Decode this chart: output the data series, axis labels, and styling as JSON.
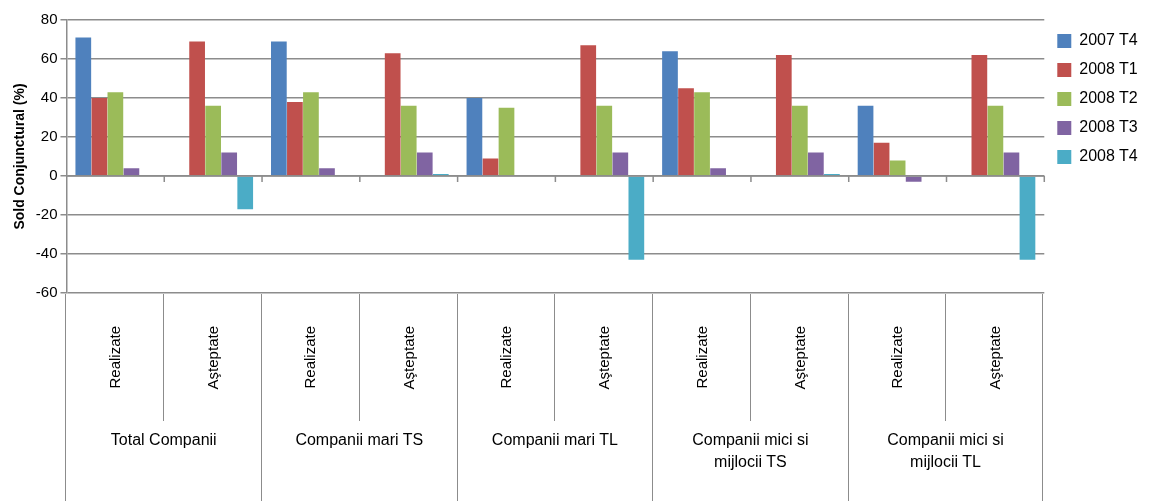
{
  "chart_data": {
    "type": "bar",
    "ylabel": "Sold Conjunctural (%)",
    "categories": [
      "Realizate",
      "Aşteptate",
      "Realizate",
      "Aşteptate",
      "Realizate",
      "Aşteptate",
      "Realizate",
      "Aşteptate",
      "Realizate",
      "Aşteptate"
    ],
    "annotations": [
      "Total Companii",
      "Companii mari TS",
      "Companii mari TL",
      "Companii mici si mijlocii TS",
      "Companii mici si mijlocii TL"
    ],
    "series": [
      {
        "name": "2007 T4",
        "color": "#4f81bd",
        "values": [
          71,
          null,
          69,
          null,
          40,
          null,
          64,
          null,
          36,
          null
        ]
      },
      {
        "name": "2008 T1",
        "color": "#c0504d",
        "values": [
          40,
          69,
          38,
          63,
          9,
          67,
          45,
          62,
          17,
          62
        ]
      },
      {
        "name": "2008 T2",
        "color": "#9bbb59",
        "values": [
          43,
          36,
          43,
          36,
          35,
          36,
          43,
          36,
          8,
          36
        ]
      },
      {
        "name": "2008 T3",
        "color": "#8064a2",
        "values": [
          4,
          12,
          4,
          12,
          null,
          12,
          4,
          12,
          -3,
          12
        ]
      },
      {
        "name": "2008 T4",
        "color": "#4bacc6",
        "values": [
          null,
          -17,
          null,
          1,
          null,
          -43,
          null,
          1,
          null,
          -43
        ]
      }
    ],
    "ylim": [
      -60,
      80
    ],
    "yticks": [
      -60,
      -40,
      -20,
      0,
      20,
      40,
      60,
      80
    ],
    "grid": "y",
    "legend": "right"
  }
}
